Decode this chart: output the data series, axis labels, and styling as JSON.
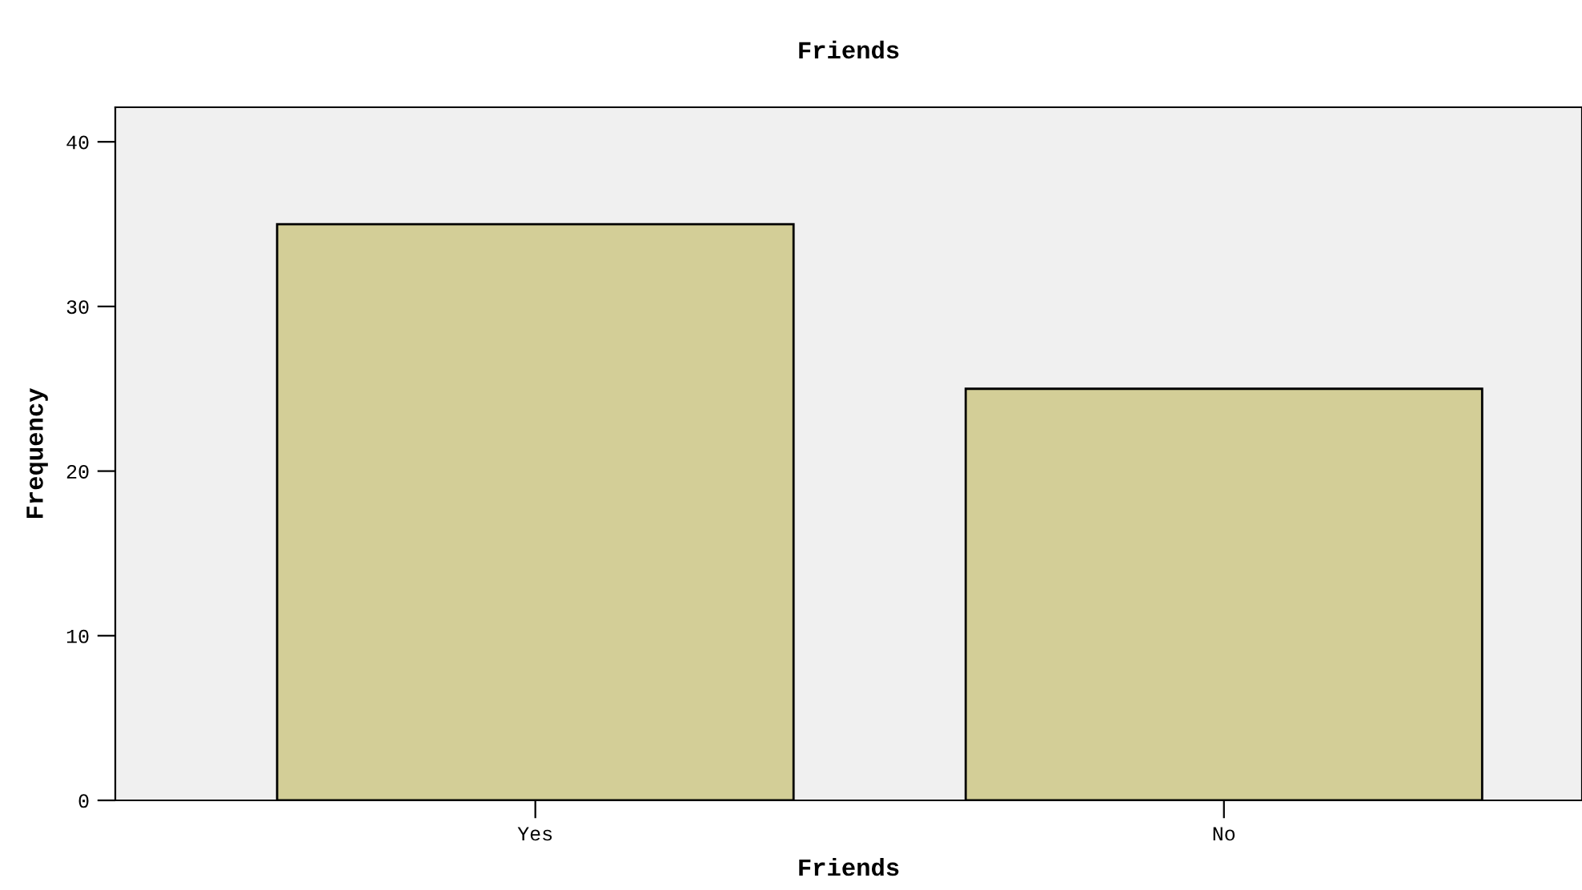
{
  "chart_data": {
    "type": "bar",
    "title": "Friends",
    "xlabel": "Friends",
    "ylabel": "Frequency",
    "categories": [
      "Yes",
      "No"
    ],
    "values": [
      35,
      25
    ],
    "color": "#d3ce97",
    "ylim": [
      0,
      42.1
    ],
    "yticks": [
      0,
      10,
      20,
      30,
      40
    ],
    "grid": false,
    "legend": false
  }
}
